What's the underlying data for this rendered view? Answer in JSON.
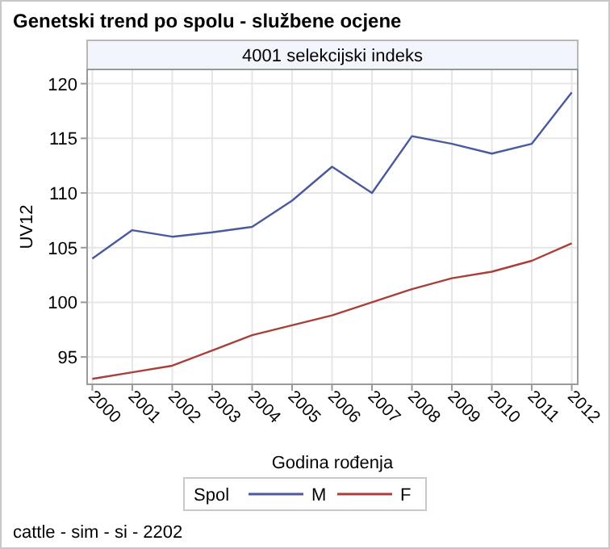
{
  "chart_data": {
    "type": "line",
    "title": "Genetski trend po spolu - službene ocjene",
    "subtitle": "4001 selekcijski indeks",
    "xlabel": "Godina rođenja",
    "ylabel": "UV12",
    "legend_title": "Spol",
    "annotations": [
      "cattle - sim - si - 2202"
    ],
    "x": [
      2000,
      2001,
      2002,
      2003,
      2004,
      2005,
      2006,
      2007,
      2008,
      2009,
      2010,
      2011,
      2012
    ],
    "series": [
      {
        "name": "M",
        "color": "#4a5a9e",
        "values": [
          104.0,
          106.6,
          106.0,
          106.4,
          106.9,
          109.3,
          112.4,
          110.0,
          115.2,
          114.5,
          113.6,
          114.5,
          119.2
        ]
      },
      {
        "name": "F",
        "color": "#a8403a",
        "values": [
          93.0,
          93.6,
          94.2,
          95.6,
          97.0,
          97.9,
          98.8,
          100.0,
          101.2,
          102.2,
          102.8,
          103.8,
          105.4
        ]
      }
    ],
    "xlim": [
      1999.87,
      2012.15
    ],
    "xticks": [
      2000,
      2001,
      2002,
      2003,
      2004,
      2005,
      2006,
      2007,
      2008,
      2009,
      2010,
      2011,
      2012
    ],
    "ylim": [
      92.5,
      121.3
    ],
    "yticks": [
      95,
      100,
      105,
      110,
      115,
      120
    ],
    "grid": true,
    "legend": "bottom",
    "marker": "none",
    "line_style": "solid"
  }
}
